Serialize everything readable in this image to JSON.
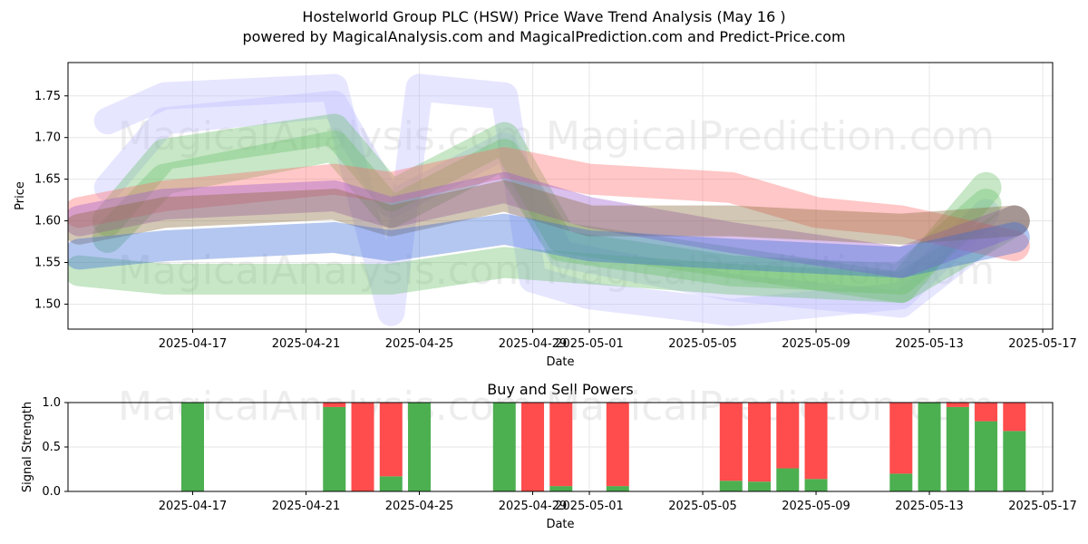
{
  "header": {
    "title": "Hostelworld Group PLC (HSW) Price Wave Trend Analysis (May 16 )",
    "subtitle": "powered by MagicalAnalysis.com and MagicalPrediction.com and Predict-Price.com"
  },
  "watermarks": {
    "left": "MagicalAnalysis.com",
    "right": "MagicalPrediction.com"
  },
  "colors": {
    "buy": "#4caf50",
    "sell": "#ff4c4c",
    "blue_band": "#3a6bd8",
    "green_band": "#6cc06c",
    "red_band": "#ff6b6b",
    "purple_band": "#9b59d0",
    "halo": "#b8b8ff"
  },
  "chart_data": [
    {
      "type": "area",
      "title": "",
      "xlabel": "Date",
      "ylabel": "Price",
      "x_range": [
        "2025-04-13",
        "2025-05-17"
      ],
      "ylim": [
        1.47,
        1.79
      ],
      "xtick_labels": [
        "2025-04-17",
        "2025-04-21",
        "2025-04-25",
        "2025-04-29",
        "2025-05-01",
        "2025-05-05",
        "2025-05-09",
        "2025-05-13",
        "2025-05-17"
      ],
      "xtick_dates": [
        "2025-04-17",
        "2025-04-21",
        "2025-04-25",
        "2025-04-29",
        "2025-05-01",
        "2025-05-05",
        "2025-05-09",
        "2025-05-13",
        "2025-05-17"
      ],
      "ytick_labels": [
        "1.50",
        "1.55",
        "1.60",
        "1.65",
        "1.70",
        "1.75"
      ],
      "ytick_values": [
        1.5,
        1.55,
        1.6,
        1.65,
        1.7,
        1.75
      ],
      "grid": true,
      "series": [
        {
          "name": "wave-halo-1",
          "color": "halo",
          "dates": [
            "2025-04-14",
            "2025-04-16",
            "2025-04-22",
            "2025-04-23",
            "2025-04-24",
            "2025-04-25",
            "2025-04-28",
            "2025-04-29",
            "2025-05-01",
            "2025-05-06",
            "2025-05-12",
            "2025-05-15"
          ],
          "values": [
            1.72,
            1.75,
            1.76,
            1.62,
            1.49,
            1.76,
            1.75,
            1.53,
            1.51,
            1.49,
            1.51,
            1.61
          ]
        },
        {
          "name": "wave-halo-2",
          "color": "halo",
          "dates": [
            "2025-04-14",
            "2025-04-16",
            "2025-04-22",
            "2025-04-24",
            "2025-04-28",
            "2025-04-30",
            "2025-05-06",
            "2025-05-12",
            "2025-05-15"
          ],
          "values": [
            1.64,
            1.72,
            1.74,
            1.62,
            1.69,
            1.56,
            1.52,
            1.5,
            1.58
          ]
        },
        {
          "name": "green-wave-1",
          "color": "green_band",
          "dates": [
            "2025-04-14",
            "2025-04-16",
            "2025-04-22",
            "2025-04-24",
            "2025-04-28",
            "2025-04-30",
            "2025-05-06",
            "2025-05-12",
            "2025-05-15"
          ],
          "values": [
            1.6,
            1.68,
            1.71,
            1.63,
            1.7,
            1.58,
            1.55,
            1.52,
            1.64
          ]
        },
        {
          "name": "green-wave-2",
          "color": "green_band",
          "dates": [
            "2025-04-14",
            "2025-04-16",
            "2025-04-22",
            "2025-04-24",
            "2025-04-28",
            "2025-04-30",
            "2025-05-06",
            "2025-05-12",
            "2025-05-15"
          ],
          "values": [
            1.58,
            1.65,
            1.69,
            1.61,
            1.68,
            1.57,
            1.54,
            1.53,
            1.62
          ]
        },
        {
          "name": "green-low-band",
          "color": "green_band",
          "dates": [
            "2025-04-13",
            "2025-04-16",
            "2025-04-24",
            "2025-04-28",
            "2025-05-06",
            "2025-05-12",
            "2025-05-16"
          ],
          "values": [
            1.54,
            1.53,
            1.53,
            1.55,
            1.53,
            1.52,
            1.6
          ]
        },
        {
          "name": "red-band",
          "color": "red_band",
          "dates": [
            "2025-04-13",
            "2025-04-16",
            "2025-04-22",
            "2025-04-24",
            "2025-04-28",
            "2025-05-01",
            "2025-05-06",
            "2025-05-09",
            "2025-05-12",
            "2025-05-16"
          ],
          "values": [
            1.61,
            1.63,
            1.65,
            1.64,
            1.67,
            1.65,
            1.64,
            1.61,
            1.6,
            1.57
          ]
        },
        {
          "name": "purple-band",
          "color": "purple_band",
          "dates": [
            "2025-04-13",
            "2025-04-16",
            "2025-04-22",
            "2025-04-24",
            "2025-04-28",
            "2025-05-01",
            "2025-05-06",
            "2025-05-12",
            "2025-05-16"
          ],
          "values": [
            1.6,
            1.62,
            1.63,
            1.61,
            1.64,
            1.61,
            1.58,
            1.55,
            1.6
          ]
        },
        {
          "name": "brown-band",
          "color": "#8a6a3a",
          "dates": [
            "2025-04-13",
            "2025-04-16",
            "2025-04-22",
            "2025-04-24",
            "2025-04-28",
            "2025-05-01",
            "2025-05-06",
            "2025-05-12",
            "2025-05-16"
          ],
          "values": [
            1.59,
            1.61,
            1.62,
            1.6,
            1.63,
            1.6,
            1.6,
            1.59,
            1.6
          ]
        },
        {
          "name": "blue-band",
          "color": "blue_band",
          "dates": [
            "2025-04-13",
            "2025-04-16",
            "2025-04-22",
            "2025-04-24",
            "2025-04-28",
            "2025-05-01",
            "2025-05-06",
            "2025-05-12",
            "2025-05-16"
          ],
          "values": [
            1.56,
            1.57,
            1.58,
            1.57,
            1.59,
            1.57,
            1.56,
            1.55,
            1.58
          ]
        }
      ]
    },
    {
      "type": "bar",
      "title": "Buy and Sell Powers",
      "xlabel": "Date",
      "ylabel": "Signal Strength",
      "ylim": [
        0,
        1
      ],
      "xtick_labels": [
        "2025-04-17",
        "2025-04-21",
        "2025-04-25",
        "2025-04-29",
        "2025-05-01",
        "2025-05-05",
        "2025-05-09",
        "2025-05-13",
        "2025-05-17"
      ],
      "ytick_labels": [
        "0.0",
        "0.5",
        "1.0"
      ],
      "ytick_values": [
        0.0,
        0.5,
        1.0
      ],
      "dates": [
        "2025-04-17",
        "2025-04-22",
        "2025-04-23",
        "2025-04-24",
        "2025-04-25",
        "2025-04-28",
        "2025-04-29",
        "2025-04-30",
        "2025-05-02",
        "2025-05-06",
        "2025-05-07",
        "2025-05-08",
        "2025-05-09",
        "2025-05-12",
        "2025-05-13",
        "2025-05-14",
        "2025-05-15",
        "2025-05-16"
      ],
      "series": [
        {
          "name": "Buy",
          "values": [
            1.0,
            0.95,
            0.0,
            0.17,
            1.0,
            1.0,
            0.0,
            0.06,
            0.06,
            0.12,
            0.11,
            0.26,
            0.14,
            0.2,
            1.0,
            0.95,
            0.79,
            0.68
          ]
        },
        {
          "name": "Sell",
          "values": [
            0.0,
            0.05,
            1.0,
            0.83,
            0.0,
            0.0,
            1.0,
            0.94,
            0.94,
            0.88,
            0.89,
            0.74,
            0.86,
            0.8,
            0.0,
            0.05,
            0.21,
            0.32
          ]
        }
      ]
    }
  ]
}
